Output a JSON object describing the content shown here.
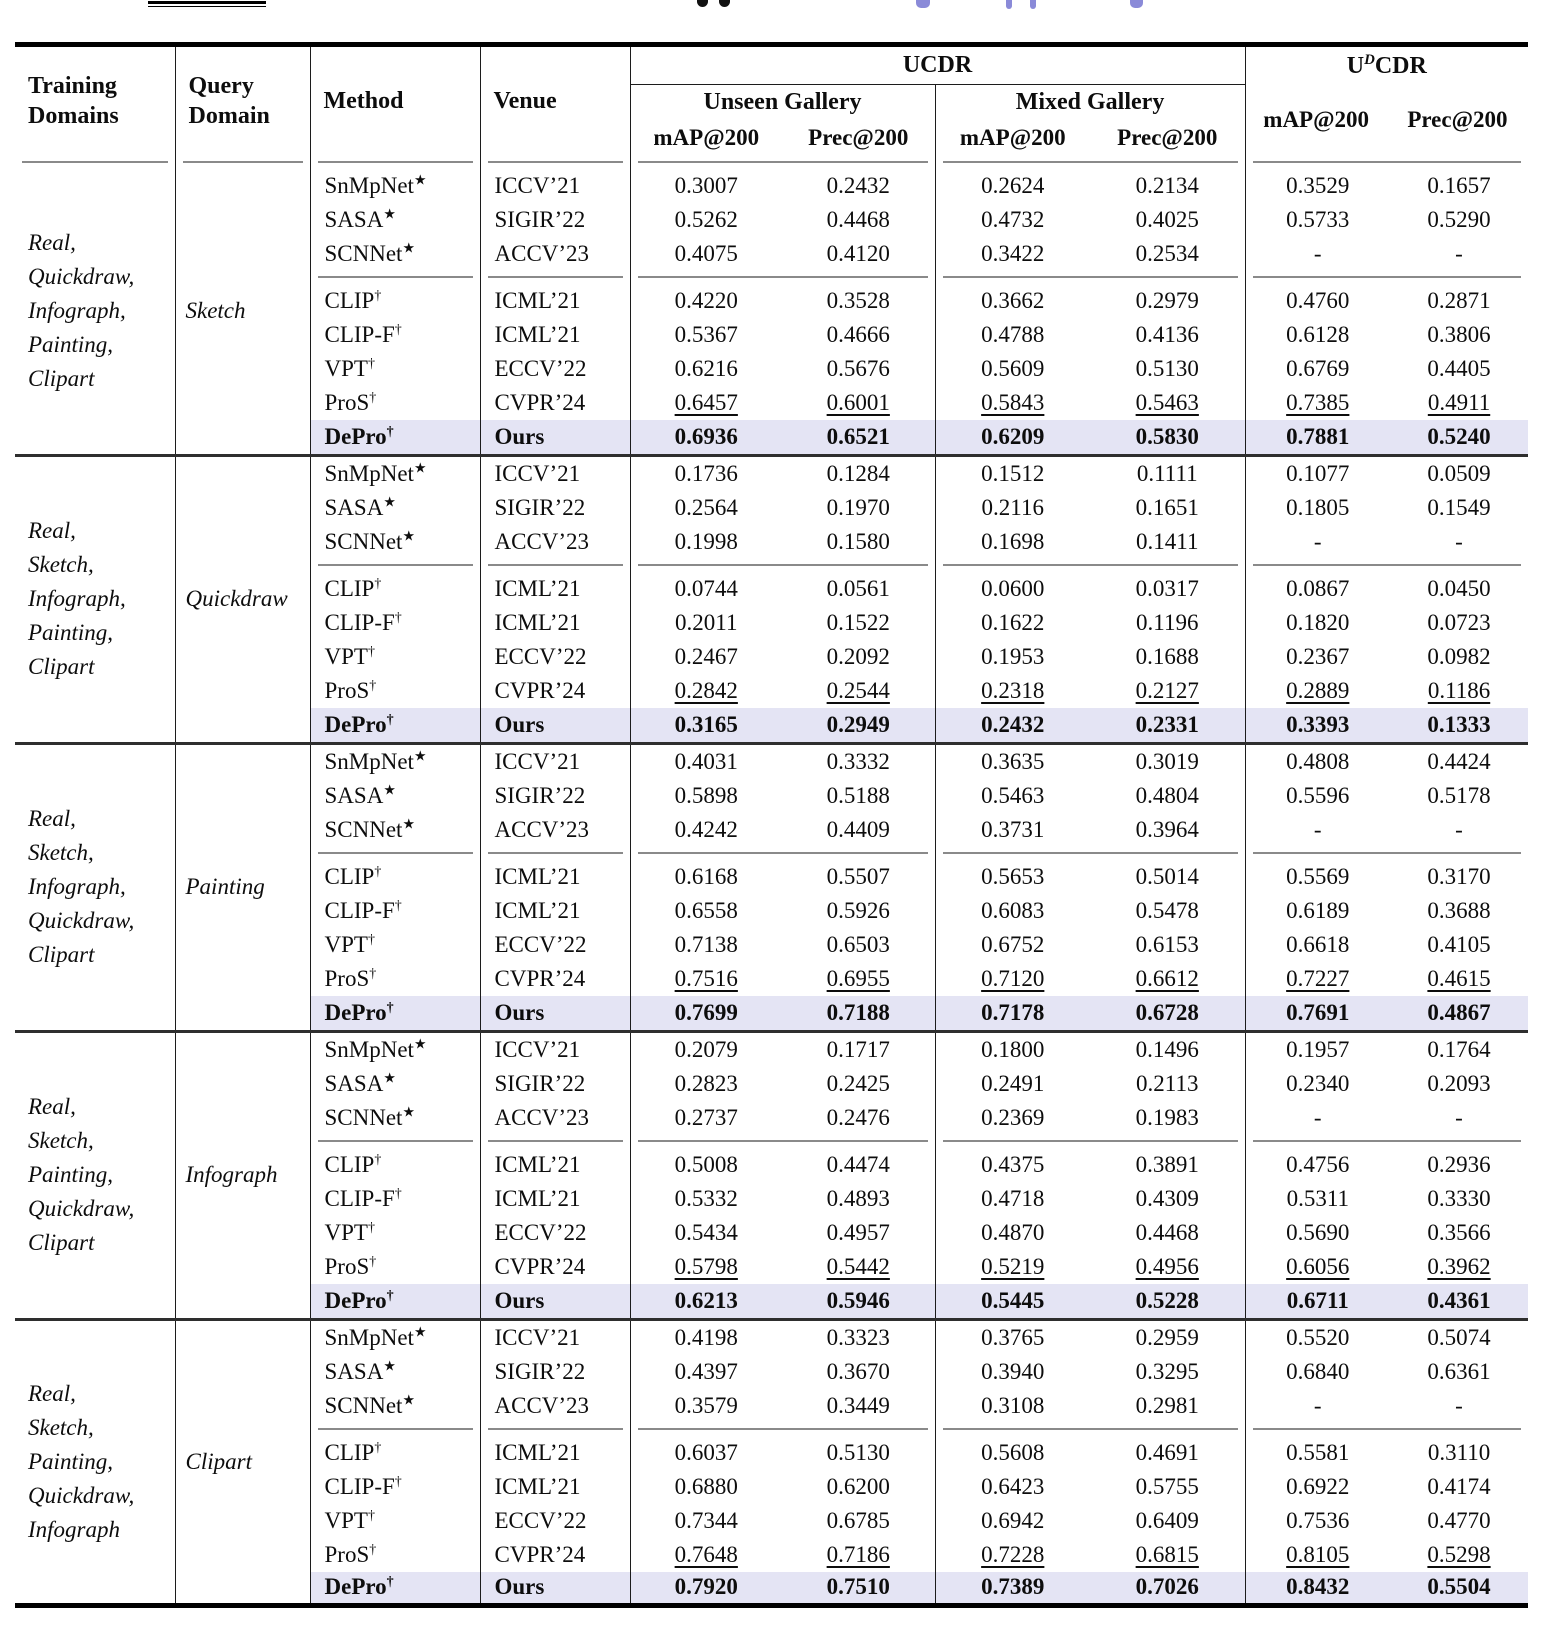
{
  "colors": {
    "row_highlight": "#e4e4f4",
    "caption_link_blue": "#8a8ad8"
  },
  "table": {
    "header": {
      "training_line1": "Training",
      "training_line2": "Domains",
      "query_line1": "Query",
      "query_line2": "Domain",
      "method": "Method",
      "venue": "Venue",
      "ucdr": "UCDR",
      "udcdr_pre": "U",
      "udcdr_sup": "D",
      "udcdr_post": "CDR",
      "unseen": "Unseen Gallery",
      "mixed": "Mixed Gallery",
      "map": "mAP@200",
      "prec": "Prec@200"
    },
    "blocks": [
      {
        "training": [
          "Real,",
          "Quickdraw,",
          "Infograph,",
          "Painting,",
          "Clipart"
        ],
        "query": "Sketch",
        "rows": [
          {
            "method": "SnMpNet",
            "marker": "★",
            "venue": "ICCV’21",
            "emph": "none",
            "values": [
              "0.3007",
              "0.2432",
              "0.2624",
              "0.2134",
              "0.3529",
              "0.1657"
            ]
          },
          {
            "method": "SASA",
            "marker": "★",
            "venue": "SIGIR’22",
            "emph": "none",
            "values": [
              "0.5262",
              "0.4468",
              "0.4732",
              "0.4025",
              "0.5733",
              "0.5290"
            ]
          },
          {
            "method": "SCNNet",
            "marker": "★",
            "venue": "ACCV’23",
            "emph": "none",
            "values": [
              "0.4075",
              "0.4120",
              "0.3422",
              "0.2534",
              "-",
              "-"
            ]
          },
          {
            "method": "CLIP",
            "marker": "†",
            "venue": "ICML’21",
            "emph": "none",
            "values": [
              "0.4220",
              "0.3528",
              "0.3662",
              "0.2979",
              "0.4760",
              "0.2871"
            ]
          },
          {
            "method": "CLIP-F",
            "marker": "†",
            "venue": "ICML’21",
            "emph": "none",
            "values": [
              "0.5367",
              "0.4666",
              "0.4788",
              "0.4136",
              "0.6128",
              "0.3806"
            ]
          },
          {
            "method": "VPT",
            "marker": "†",
            "venue": "ECCV’22",
            "emph": "none",
            "values": [
              "0.6216",
              "0.5676",
              "0.5609",
              "0.5130",
              "0.6769",
              "0.4405"
            ]
          },
          {
            "method": "ProS",
            "marker": "†",
            "venue": "CVPR’24",
            "emph": "underline",
            "values": [
              "0.6457",
              "0.6001",
              "0.5843",
              "0.5463",
              "0.7385",
              "0.4911"
            ]
          },
          {
            "method": "DePro",
            "marker": "†",
            "venue": "Ours",
            "emph": "best",
            "values": [
              "0.6936",
              "0.6521",
              "0.6209",
              "0.5830",
              "0.7881",
              "0.5240"
            ]
          }
        ]
      },
      {
        "training": [
          "Real,",
          "Sketch,",
          "Infograph,",
          "Painting,",
          "Clipart"
        ],
        "query": "Quickdraw",
        "rows": [
          {
            "method": "SnMpNet",
            "marker": "★",
            "venue": "ICCV’21",
            "emph": "none",
            "values": [
              "0.1736",
              "0.1284",
              "0.1512",
              "0.1111",
              "0.1077",
              "0.0509"
            ]
          },
          {
            "method": "SASA",
            "marker": "★",
            "venue": "SIGIR’22",
            "emph": "none",
            "values": [
              "0.2564",
              "0.1970",
              "0.2116",
              "0.1651",
              "0.1805",
              "0.1549"
            ]
          },
          {
            "method": "SCNNet",
            "marker": "★",
            "venue": "ACCV’23",
            "emph": "none",
            "values": [
              "0.1998",
              "0.1580",
              "0.1698",
              "0.1411",
              "-",
              "-"
            ]
          },
          {
            "method": "CLIP",
            "marker": "†",
            "venue": "ICML’21",
            "emph": "none",
            "values": [
              "0.0744",
              "0.0561",
              "0.0600",
              "0.0317",
              "0.0867",
              "0.0450"
            ]
          },
          {
            "method": "CLIP-F",
            "marker": "†",
            "venue": "ICML’21",
            "emph": "none",
            "values": [
              "0.2011",
              "0.1522",
              "0.1622",
              "0.1196",
              "0.1820",
              "0.0723"
            ]
          },
          {
            "method": "VPT",
            "marker": "†",
            "venue": "ECCV’22",
            "emph": "none",
            "values": [
              "0.2467",
              "0.2092",
              "0.1953",
              "0.1688",
              "0.2367",
              "0.0982"
            ]
          },
          {
            "method": "ProS",
            "marker": "†",
            "venue": "CVPR’24",
            "emph": "underline",
            "values": [
              "0.2842",
              "0.2544",
              "0.2318",
              "0.2127",
              "0.2889",
              "0.1186"
            ]
          },
          {
            "method": "DePro",
            "marker": "†",
            "venue": "Ours",
            "emph": "best",
            "values": [
              "0.3165",
              "0.2949",
              "0.2432",
              "0.2331",
              "0.3393",
              "0.1333"
            ]
          }
        ]
      },
      {
        "training": [
          "Real,",
          "Sketch,",
          "Infograph,",
          "Quickdraw,",
          "Clipart"
        ],
        "query": "Painting",
        "rows": [
          {
            "method": "SnMpNet",
            "marker": "★",
            "venue": "ICCV’21",
            "emph": "none",
            "values": [
              "0.4031",
              "0.3332",
              "0.3635",
              "0.3019",
              "0.4808",
              "0.4424"
            ]
          },
          {
            "method": "SASA",
            "marker": "★",
            "venue": "SIGIR’22",
            "emph": "none",
            "values": [
              "0.5898",
              "0.5188",
              "0.5463",
              "0.4804",
              "0.5596",
              "0.5178"
            ]
          },
          {
            "method": "SCNNet",
            "marker": "★",
            "venue": "ACCV’23",
            "emph": "none",
            "values": [
              "0.4242",
              "0.4409",
              "0.3731",
              "0.3964",
              "-",
              "-"
            ]
          },
          {
            "method": "CLIP",
            "marker": "†",
            "venue": "ICML’21",
            "emph": "none",
            "values": [
              "0.6168",
              "0.5507",
              "0.5653",
              "0.5014",
              "0.5569",
              "0.3170"
            ]
          },
          {
            "method": "CLIP-F",
            "marker": "†",
            "venue": "ICML’21",
            "emph": "none",
            "values": [
              "0.6558",
              "0.5926",
              "0.6083",
              "0.5478",
              "0.6189",
              "0.3688"
            ]
          },
          {
            "method": "VPT",
            "marker": "†",
            "venue": "ECCV’22",
            "emph": "none",
            "values": [
              "0.7138",
              "0.6503",
              "0.6752",
              "0.6153",
              "0.6618",
              "0.4105"
            ]
          },
          {
            "method": "ProS",
            "marker": "†",
            "venue": "CVPR’24",
            "emph": "underline",
            "values": [
              "0.7516",
              "0.6955",
              "0.7120",
              "0.6612",
              "0.7227",
              "0.4615"
            ]
          },
          {
            "method": "DePro",
            "marker": "†",
            "venue": "Ours",
            "emph": "best",
            "values": [
              "0.7699",
              "0.7188",
              "0.7178",
              "0.6728",
              "0.7691",
              "0.4867"
            ]
          }
        ]
      },
      {
        "training": [
          "Real,",
          "Sketch,",
          "Painting,",
          "Quickdraw,",
          "Clipart"
        ],
        "query": "Infograph",
        "rows": [
          {
            "method": "SnMpNet",
            "marker": "★",
            "venue": "ICCV’21",
            "emph": "none",
            "values": [
              "0.2079",
              "0.1717",
              "0.1800",
              "0.1496",
              "0.1957",
              "0.1764"
            ]
          },
          {
            "method": "SASA",
            "marker": "★",
            "venue": "SIGIR’22",
            "emph": "none",
            "values": [
              "0.2823",
              "0.2425",
              "0.2491",
              "0.2113",
              "0.2340",
              "0.2093"
            ]
          },
          {
            "method": "SCNNet",
            "marker": "★",
            "venue": "ACCV’23",
            "emph": "none",
            "values": [
              "0.2737",
              "0.2476",
              "0.2369",
              "0.1983",
              "-",
              "-"
            ]
          },
          {
            "method": "CLIP",
            "marker": "†",
            "venue": "ICML’21",
            "emph": "none",
            "values": [
              "0.5008",
              "0.4474",
              "0.4375",
              "0.3891",
              "0.4756",
              "0.2936"
            ]
          },
          {
            "method": "CLIP-F",
            "marker": "†",
            "venue": "ICML’21",
            "emph": "none",
            "values": [
              "0.5332",
              "0.4893",
              "0.4718",
              "0.4309",
              "0.5311",
              "0.3330"
            ]
          },
          {
            "method": "VPT",
            "marker": "†",
            "venue": "ECCV’22",
            "emph": "none",
            "values": [
              "0.5434",
              "0.4957",
              "0.4870",
              "0.4468",
              "0.5690",
              "0.3566"
            ]
          },
          {
            "method": "ProS",
            "marker": "†",
            "venue": "CVPR’24",
            "emph": "underline",
            "values": [
              "0.5798",
              "0.5442",
              "0.5219",
              "0.4956",
              "0.6056",
              "0.3962"
            ]
          },
          {
            "method": "DePro",
            "marker": "†",
            "venue": "Ours",
            "emph": "best",
            "values": [
              "0.6213",
              "0.5946",
              "0.5445",
              "0.5228",
              "0.6711",
              "0.4361"
            ]
          }
        ]
      },
      {
        "training": [
          "Real,",
          "Sketch,",
          "Painting,",
          "Quickdraw,",
          "Infograph"
        ],
        "query": "Clipart",
        "rows": [
          {
            "method": "SnMpNet",
            "marker": "★",
            "venue": "ICCV’21",
            "emph": "none",
            "values": [
              "0.4198",
              "0.3323",
              "0.3765",
              "0.2959",
              "0.5520",
              "0.5074"
            ]
          },
          {
            "method": "SASA",
            "marker": "★",
            "venue": "SIGIR’22",
            "emph": "none",
            "values": [
              "0.4397",
              "0.3670",
              "0.3940",
              "0.3295",
              "0.6840",
              "0.6361"
            ]
          },
          {
            "method": "SCNNet",
            "marker": "★",
            "venue": "ACCV’23",
            "emph": "none",
            "values": [
              "0.3579",
              "0.3449",
              "0.3108",
              "0.2981",
              "-",
              "-"
            ]
          },
          {
            "method": "CLIP",
            "marker": "†",
            "venue": "ICML’21",
            "emph": "none",
            "values": [
              "0.6037",
              "0.5130",
              "0.5608",
              "0.4691",
              "0.5581",
              "0.3110"
            ]
          },
          {
            "method": "CLIP-F",
            "marker": "†",
            "venue": "ICML’21",
            "emph": "none",
            "values": [
              "0.6880",
              "0.6200",
              "0.6423",
              "0.5755",
              "0.6922",
              "0.4174"
            ]
          },
          {
            "method": "VPT",
            "marker": "†",
            "venue": "ECCV’22",
            "emph": "none",
            "values": [
              "0.7344",
              "0.6785",
              "0.6942",
              "0.6409",
              "0.7536",
              "0.4770"
            ]
          },
          {
            "method": "ProS",
            "marker": "†",
            "venue": "CVPR’24",
            "emph": "underline",
            "values": [
              "0.7648",
              "0.7186",
              "0.7228",
              "0.6815",
              "0.8105",
              "0.5298"
            ]
          },
          {
            "method": "DePro",
            "marker": "†",
            "venue": "Ours",
            "emph": "best",
            "values": [
              "0.7920",
              "0.7510",
              "0.7389",
              "0.7026",
              "0.8432",
              "0.5504"
            ]
          }
        ]
      }
    ]
  }
}
